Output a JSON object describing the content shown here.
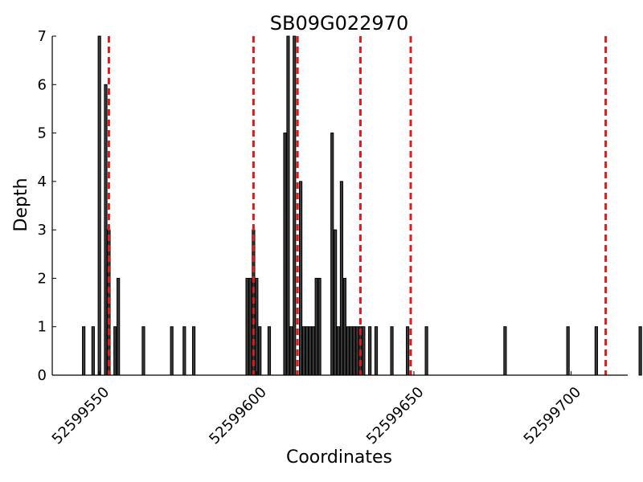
{
  "chart_data": {
    "type": "bar",
    "title": "SB09G022970",
    "xlabel": "Coordinates",
    "ylabel": "Depth",
    "xlim": [
      52599535,
      52599718
    ],
    "ylim": [
      0,
      7
    ],
    "xticks": [
      52599550,
      52599600,
      52599650,
      52599700
    ],
    "xtick_labels": [
      "52599550",
      "52599600",
      "52599650",
      "52599700"
    ],
    "yticks": [
      0,
      1,
      2,
      3,
      4,
      5,
      6,
      7
    ],
    "ytick_labels": [
      "0",
      "1",
      "2",
      "3",
      "4",
      "5",
      "6",
      "7"
    ],
    "grid": false,
    "bar_color": "#3a3a3a",
    "marker_color": "#e31a1c",
    "x": [
      52599545,
      52599548,
      52599550,
      52599552,
      52599553,
      52599555,
      52599556,
      52599564,
      52599573,
      52599577,
      52599580,
      52599597,
      52599598,
      52599599,
      52599600,
      52599601,
      52599604,
      52599609,
      52599610,
      52599611,
      52599612,
      52599614,
      52599615,
      52599616,
      52599617,
      52599618,
      52599619,
      52599620,
      52599624,
      52599625,
      52599626,
      52599627,
      52599628,
      52599629,
      52599630,
      52599631,
      52599632,
      52599633,
      52599634,
      52599636,
      52599638,
      52599643,
      52599648,
      52599654,
      52599679,
      52599699,
      52599708,
      52599722
    ],
    "values": [
      1,
      1,
      7,
      6,
      3,
      1,
      2,
      1,
      1,
      1,
      1,
      2,
      2,
      3,
      2,
      1,
      1,
      5,
      7,
      1,
      7,
      4,
      1,
      1,
      1,
      1,
      2,
      2,
      5,
      3,
      1,
      4,
      2,
      1,
      1,
      1,
      1,
      1,
      1,
      1,
      1,
      1,
      1,
      1,
      1,
      1,
      1,
      1
    ],
    "markers": [
      52599553,
      52599599,
      52599613,
      52599633,
      52599649,
      52599711
    ]
  }
}
